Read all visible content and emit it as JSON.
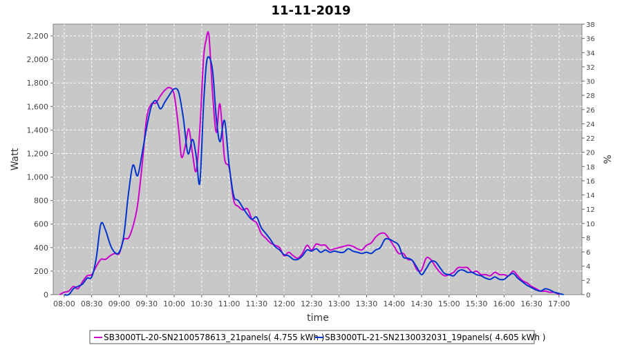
{
  "chart_data": {
    "type": "line",
    "title": "11-11-2019",
    "xlabel": "time",
    "ylabel": "Watt",
    "y2label": "%",
    "xlim": [
      "07:48",
      "17:25"
    ],
    "ylim": [
      0,
      2300
    ],
    "y2lim": [
      0,
      38
    ],
    "x_ticks": [
      "08:00",
      "08:30",
      "09:00",
      "09:30",
      "10:00",
      "10:30",
      "11:00",
      "11:30",
      "12:00",
      "12:30",
      "13:00",
      "13:30",
      "14:00",
      "14:30",
      "15:00",
      "15:30",
      "16:00",
      "16:30",
      "17:00"
    ],
    "y_ticks": [
      0,
      200,
      400,
      600,
      800,
      1000,
      1200,
      1400,
      1600,
      1800,
      2000,
      2200
    ],
    "y_tick_labels": [
      "0",
      "200",
      "400",
      "600",
      "800",
      "1,000",
      "1,200",
      "1,400",
      "1,600",
      "1,800",
      "2,000",
      "2,200"
    ],
    "y2_ticks": [
      0,
      2,
      4,
      6,
      8,
      10,
      12,
      14,
      16,
      18,
      20,
      22,
      24,
      26,
      28,
      30,
      32,
      34,
      36,
      38
    ],
    "grid": true,
    "legend_position": "bottom",
    "series": [
      {
        "name": "SB3000TL-20-SN2100578613_21panels( 4.755 kWh )",
        "color": "#cc00cc",
        "x": [
          "07:55",
          "08:00",
          "08:05",
          "08:10",
          "08:15",
          "08:20",
          "08:25",
          "08:30",
          "08:35",
          "08:40",
          "08:45",
          "08:50",
          "08:55",
          "09:00",
          "09:05",
          "09:10",
          "09:15",
          "09:20",
          "09:25",
          "09:30",
          "09:35",
          "09:40",
          "09:45",
          "09:50",
          "09:55",
          "10:00",
          "10:05",
          "10:08",
          "10:12",
          "10:16",
          "10:20",
          "10:24",
          "10:28",
          "10:32",
          "10:35",
          "10:38",
          "10:42",
          "10:46",
          "10:50",
          "10:55",
          "11:00",
          "11:05",
          "11:10",
          "11:15",
          "11:20",
          "11:25",
          "11:30",
          "11:35",
          "11:40",
          "11:45",
          "11:50",
          "11:55",
          "12:00",
          "12:05",
          "12:10",
          "12:15",
          "12:20",
          "12:25",
          "12:30",
          "12:35",
          "12:40",
          "12:45",
          "12:50",
          "12:55",
          "13:00",
          "13:05",
          "13:10",
          "13:15",
          "13:20",
          "13:25",
          "13:30",
          "13:35",
          "13:40",
          "13:45",
          "13:50",
          "13:55",
          "14:00",
          "14:05",
          "14:10",
          "14:15",
          "14:20",
          "14:25",
          "14:30",
          "14:35",
          "14:40",
          "14:45",
          "14:50",
          "14:55",
          "15:00",
          "15:05",
          "15:10",
          "15:15",
          "15:20",
          "15:25",
          "15:30",
          "15:35",
          "15:40",
          "15:45",
          "15:50",
          "15:55",
          "16:00",
          "16:05",
          "16:10",
          "16:15",
          "16:20",
          "16:25",
          "16:30",
          "16:35",
          "16:40",
          "16:45",
          "16:50",
          "16:55",
          "17:00"
        ],
        "values": [
          0,
          20,
          30,
          70,
          50,
          110,
          160,
          170,
          240,
          300,
          300,
          330,
          350,
          350,
          470,
          480,
          580,
          760,
          1100,
          1500,
          1620,
          1630,
          1690,
          1740,
          1760,
          1700,
          1400,
          1170,
          1260,
          1410,
          1200,
          1050,
          1400,
          2000,
          2170,
          2200,
          1700,
          1380,
          1620,
          1160,
          1080,
          800,
          750,
          720,
          730,
          640,
          610,
          520,
          480,
          440,
          420,
          400,
          330,
          360,
          330,
          310,
          350,
          420,
          380,
          430,
          420,
          420,
          380,
          390,
          400,
          410,
          420,
          410,
          390,
          380,
          420,
          440,
          490,
          520,
          520,
          470,
          410,
          350,
          350,
          300,
          290,
          210,
          210,
          310,
          300,
          240,
          190,
          160,
          170,
          190,
          230,
          230,
          230,
          190,
          200,
          170,
          170,
          160,
          190,
          170,
          170,
          160,
          200,
          160,
          120,
          100,
          70,
          50,
          30,
          30,
          20,
          20,
          0
        ]
      },
      {
        "name": "SB3000TL-21-SN2130032031_19panels( 4.605 kWh )",
        "color": "#0033cc",
        "x": [
          "08:00",
          "08:05",
          "08:10",
          "08:15",
          "08:20",
          "08:25",
          "08:30",
          "08:35",
          "08:40",
          "08:45",
          "08:50",
          "08:55",
          "09:00",
          "09:05",
          "09:10",
          "09:15",
          "09:20",
          "09:25",
          "09:30",
          "09:35",
          "09:40",
          "09:45",
          "09:50",
          "09:55",
          "10:00",
          "10:05",
          "10:10",
          "10:15",
          "10:20",
          "10:24",
          "10:28",
          "10:32",
          "10:35",
          "10:38",
          "10:42",
          "10:46",
          "10:50",
          "10:55",
          "11:00",
          "11:05",
          "11:10",
          "11:15",
          "11:20",
          "11:25",
          "11:30",
          "11:35",
          "11:40",
          "11:45",
          "11:50",
          "11:55",
          "12:00",
          "12:05",
          "12:10",
          "12:15",
          "12:20",
          "12:25",
          "12:30",
          "12:35",
          "12:40",
          "12:45",
          "12:50",
          "12:55",
          "13:00",
          "13:05",
          "13:10",
          "13:15",
          "13:20",
          "13:25",
          "13:30",
          "13:35",
          "13:40",
          "13:45",
          "13:50",
          "13:55",
          "14:00",
          "14:05",
          "14:10",
          "14:15",
          "14:20",
          "14:25",
          "14:30",
          "14:35",
          "14:40",
          "14:45",
          "14:50",
          "14:55",
          "15:00",
          "15:05",
          "15:10",
          "15:15",
          "15:20",
          "15:25",
          "15:30",
          "15:35",
          "15:40",
          "15:45",
          "15:50",
          "15:55",
          "16:00",
          "16:05",
          "16:10",
          "16:15",
          "16:20",
          "16:25",
          "16:30",
          "16:35",
          "16:40",
          "16:45",
          "16:50",
          "16:55",
          "17:00",
          "17:05"
        ],
        "values": [
          0,
          0,
          50,
          70,
          90,
          140,
          150,
          310,
          600,
          550,
          430,
          360,
          360,
          500,
          850,
          1100,
          1010,
          1200,
          1420,
          1600,
          1650,
          1580,
          1640,
          1700,
          1750,
          1720,
          1500,
          1200,
          1320,
          1180,
          950,
          1600,
          1950,
          2020,
          1900,
          1500,
          1300,
          1480,
          1100,
          840,
          800,
          740,
          680,
          640,
          660,
          570,
          520,
          470,
          410,
          380,
          340,
          330,
          300,
          300,
          330,
          380,
          370,
          390,
          360,
          380,
          360,
          370,
          360,
          360,
          390,
          370,
          360,
          350,
          360,
          350,
          380,
          400,
          470,
          470,
          450,
          420,
          320,
          310,
          290,
          230,
          170,
          220,
          280,
          280,
          230,
          180,
          170,
          160,
          200,
          210,
          190,
          190,
          170,
          160,
          140,
          130,
          150,
          130,
          130,
          160,
          180,
          140,
          110,
          80,
          60,
          40,
          30,
          50,
          40,
          20,
          10,
          0
        ]
      }
    ]
  }
}
